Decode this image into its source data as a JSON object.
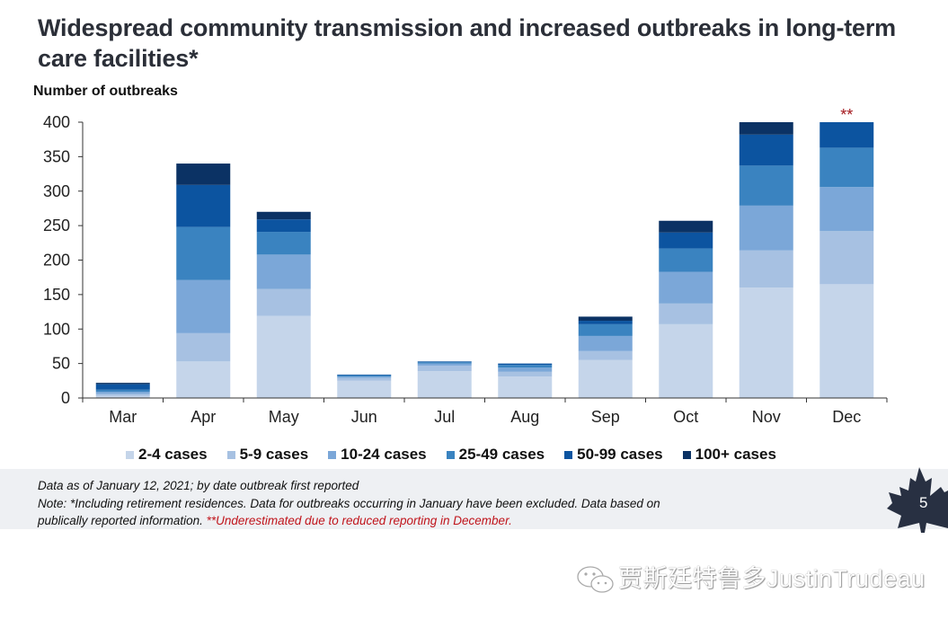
{
  "page": {
    "title": "Widespread community transmission and increased outbreaks in long-term care facilities*",
    "footnote_line1": "Data as of January 12, 2021; by date outbreak first reported",
    "footnote_line2": "Note: *Including retirement residences. Data for outbreaks occurring in January have been excluded. Data based on",
    "footnote_line3": "publically reported information.",
    "footnote_red": "**Underestimated due to reduced reporting in December.",
    "page_number": "5",
    "watermark": "贾斯廷特鲁多JustinTrudeau",
    "dec_annotation": "**",
    "annotation_color": "#a3171c"
  },
  "chart_data": {
    "type": "bar",
    "stacked": true,
    "title": "",
    "ylabel": "Number of outbreaks",
    "xlabel": "",
    "ylim": [
      0,
      400
    ],
    "yticks": [
      0,
      50,
      100,
      150,
      200,
      250,
      300,
      350,
      400
    ],
    "grid": false,
    "legend_position": "bottom",
    "categories": [
      "Mar",
      "Apr",
      "May",
      "Jun",
      "Jul",
      "Aug",
      "Sep",
      "Oct",
      "Nov",
      "Dec"
    ],
    "series": [
      {
        "name": "2-4 cases",
        "color": "#c5d5ea",
        "values": [
          3,
          53,
          119,
          25,
          39,
          31,
          55,
          107,
          160,
          165
        ]
      },
      {
        "name": "5-9 cases",
        "color": "#a7c1e2",
        "values": [
          3,
          41,
          39,
          4,
          8,
          7,
          13,
          30,
          54,
          77
        ]
      },
      {
        "name": "10-24 cases",
        "color": "#7ba7d8",
        "values": [
          3,
          77,
          50,
          2,
          3,
          6,
          22,
          46,
          65,
          64
        ]
      },
      {
        "name": "25-49 cases",
        "color": "#3a83c0",
        "values": [
          3,
          77,
          33,
          2,
          2,
          4,
          17,
          34,
          58,
          57
        ]
      },
      {
        "name": "50-99 cases",
        "color": "#0c54a0",
        "values": [
          8,
          61,
          18,
          1,
          1,
          2,
          5,
          23,
          45,
          37
        ]
      },
      {
        "name": "100+ cases",
        "color": "#0b3264",
        "values": [
          2,
          31,
          11,
          0,
          0,
          0,
          6,
          17,
          18,
          0
        ]
      }
    ],
    "annotations": [
      {
        "category": "Dec",
        "text": "**"
      }
    ]
  }
}
